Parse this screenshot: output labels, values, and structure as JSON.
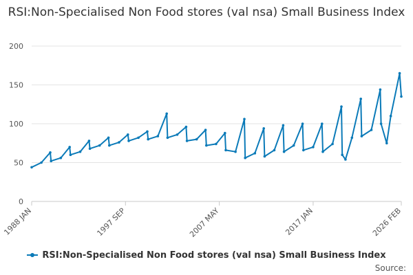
{
  "chart_data": {
    "type": "line",
    "title": "RSI:Non-Specialised Non Food stores (val nsa) Small Business Index",
    "xlabel": "",
    "ylabel": "",
    "ylim": [
      0,
      200
    ],
    "yticks": [
      "0",
      "50",
      "100",
      "150",
      "200"
    ],
    "xticks": [
      "1988 JAN",
      "1997 SEP",
      "2007 MAY",
      "2017 JAN",
      "2026 FEB"
    ],
    "x_range": [
      "1988 JAN",
      "2026 FEB"
    ],
    "grid": true,
    "legend_position": "bottom",
    "color": "#0a7ab8",
    "series": [
      {
        "name": "RSI:Non-Specialised Non Food stores (val nsa) Small Business Index",
        "points": [
          [
            "1988 JAN",
            44
          ],
          [
            "1989 JAN",
            50
          ],
          [
            "1989 DEC",
            63
          ],
          [
            "1990 JAN",
            52
          ],
          [
            "1991 JAN",
            56
          ],
          [
            "1991 DEC",
            70
          ],
          [
            "1992 JAN",
            60
          ],
          [
            "1993 JAN",
            64
          ],
          [
            "1993 DEC",
            78
          ],
          [
            "1994 JAN",
            68
          ],
          [
            "1995 JAN",
            72
          ],
          [
            "1995 DEC",
            82
          ],
          [
            "1996 JAN",
            72
          ],
          [
            "1997 JAN",
            76
          ],
          [
            "1997 DEC",
            86
          ],
          [
            "1998 JAN",
            78
          ],
          [
            "1999 JAN",
            82
          ],
          [
            "1999 DEC",
            90
          ],
          [
            "2000 JAN",
            80
          ],
          [
            "2001 JAN",
            84
          ],
          [
            "2001 DEC",
            113
          ],
          [
            "2002 JAN",
            82
          ],
          [
            "2003 JAN",
            86
          ],
          [
            "2003 DEC",
            96
          ],
          [
            "2004 JAN",
            78
          ],
          [
            "2005 JAN",
            80
          ],
          [
            "2005 DEC",
            92
          ],
          [
            "2006 JAN",
            72
          ],
          [
            "2007 JAN",
            74
          ],
          [
            "2007 DEC",
            88
          ],
          [
            "2008 JAN",
            66
          ],
          [
            "2009 JAN",
            64
          ],
          [
            "2009 DEC",
            106
          ],
          [
            "2010 JAN",
            56
          ],
          [
            "2011 JAN",
            62
          ],
          [
            "2011 DEC",
            94
          ],
          [
            "2012 JAN",
            58
          ],
          [
            "2013 JAN",
            66
          ],
          [
            "2013 DEC",
            98
          ],
          [
            "2014 JAN",
            64
          ],
          [
            "2015 JAN",
            72
          ],
          [
            "2015 DEC",
            100
          ],
          [
            "2016 JAN",
            66
          ],
          [
            "2017 JAN",
            70
          ],
          [
            "2017 DEC",
            100
          ],
          [
            "2018 JAN",
            64
          ],
          [
            "2019 JAN",
            74
          ],
          [
            "2019 DEC",
            122
          ],
          [
            "2020 JAN",
            60
          ],
          [
            "2020 MAY",
            54
          ],
          [
            "2021 JAN",
            82
          ],
          [
            "2021 DEC",
            132
          ],
          [
            "2022 JAN",
            84
          ],
          [
            "2023 JAN",
            92
          ],
          [
            "2023 DEC",
            144
          ],
          [
            "2024 JAN",
            100
          ],
          [
            "2024 AUG",
            75
          ],
          [
            "2025 JAN",
            110
          ],
          [
            "2025 DEC",
            165
          ],
          [
            "2026 FEB",
            135
          ]
        ]
      }
    ]
  },
  "source_label": "Source:"
}
